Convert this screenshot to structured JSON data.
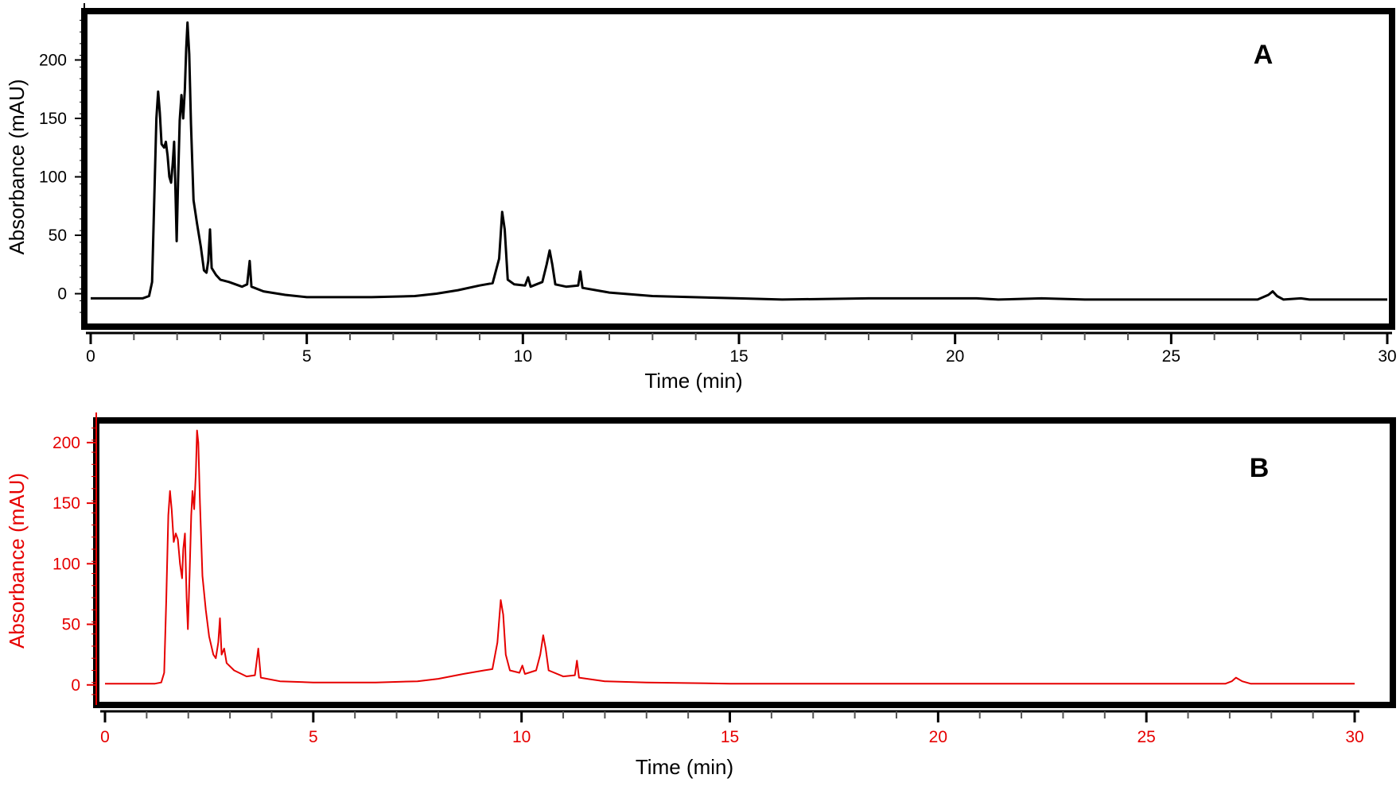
{
  "chart_data": [
    {
      "type": "line",
      "panel_label": "A",
      "xlabel": "Time (min)",
      "ylabel": "Absorbance (mAU)",
      "xlim": [
        0,
        30
      ],
      "ylim": [
        -18,
        235
      ],
      "x_ticks": [
        "0",
        "5",
        "10",
        "15",
        "20",
        "25",
        "30"
      ],
      "y_ticks": [
        "0",
        "50",
        "100",
        "150",
        "200"
      ],
      "color": "#000000",
      "grid": false,
      "series": [
        {
          "points": [
            [
              0,
              -4
            ],
            [
              1.2,
              -4
            ],
            [
              1.35,
              -2
            ],
            [
              1.42,
              10
            ],
            [
              1.47,
              80
            ],
            [
              1.52,
              150
            ],
            [
              1.56,
              173
            ],
            [
              1.6,
              155
            ],
            [
              1.64,
              128
            ],
            [
              1.7,
              125
            ],
            [
              1.74,
              130
            ],
            [
              1.78,
              118
            ],
            [
              1.82,
              100
            ],
            [
              1.86,
              95
            ],
            [
              1.9,
              112
            ],
            [
              1.93,
              130
            ],
            [
              1.96,
              90
            ],
            [
              1.99,
              45
            ],
            [
              2.02,
              95
            ],
            [
              2.06,
              148
            ],
            [
              2.1,
              170
            ],
            [
              2.14,
              150
            ],
            [
              2.18,
              175
            ],
            [
              2.21,
              210
            ],
            [
              2.24,
              232
            ],
            [
              2.28,
              205
            ],
            [
              2.32,
              145
            ],
            [
              2.38,
              80
            ],
            [
              2.46,
              60
            ],
            [
              2.55,
              40
            ],
            [
              2.62,
              20
            ],
            [
              2.68,
              18
            ],
            [
              2.72,
              28
            ],
            [
              2.76,
              55
            ],
            [
              2.8,
              22
            ],
            [
              2.9,
              16
            ],
            [
              3.0,
              12
            ],
            [
              3.2,
              10
            ],
            [
              3.5,
              6
            ],
            [
              3.62,
              8
            ],
            [
              3.68,
              28
            ],
            [
              3.72,
              6
            ],
            [
              4.0,
              2
            ],
            [
              4.5,
              -1
            ],
            [
              5.0,
              -3
            ],
            [
              6.5,
              -3
            ],
            [
              7.5,
              -2
            ],
            [
              8.0,
              0
            ],
            [
              8.5,
              3
            ],
            [
              9.0,
              7
            ],
            [
              9.3,
              9
            ],
            [
              9.45,
              30
            ],
            [
              9.52,
              70
            ],
            [
              9.58,
              55
            ],
            [
              9.65,
              12
            ],
            [
              9.8,
              8
            ],
            [
              10.05,
              7
            ],
            [
              10.12,
              14
            ],
            [
              10.18,
              6
            ],
            [
              10.45,
              10
            ],
            [
              10.55,
              25
            ],
            [
              10.62,
              37
            ],
            [
              10.68,
              25
            ],
            [
              10.75,
              8
            ],
            [
              11.0,
              6
            ],
            [
              11.28,
              7
            ],
            [
              11.33,
              19
            ],
            [
              11.38,
              5
            ],
            [
              12.0,
              1
            ],
            [
              13.0,
              -2
            ],
            [
              15.0,
              -4
            ],
            [
              16.0,
              -5
            ],
            [
              18.0,
              -4
            ],
            [
              20.5,
              -4
            ],
            [
              21.0,
              -5
            ],
            [
              22.0,
              -4
            ],
            [
              23.0,
              -5
            ],
            [
              27.0,
              -5
            ],
            [
              27.25,
              -1
            ],
            [
              27.35,
              2
            ],
            [
              27.45,
              -2
            ],
            [
              27.6,
              -5
            ],
            [
              28.0,
              -4
            ],
            [
              28.2,
              -5
            ],
            [
              30,
              -5
            ]
          ]
        }
      ]
    },
    {
      "type": "line",
      "panel_label": "B",
      "xlabel": "Time (min)",
      "ylabel": "Absorbance (mAU)",
      "xlim": [
        0,
        30
      ],
      "ylim": [
        -10,
        215
      ],
      "x_ticks": [
        "0",
        "5",
        "10",
        "15",
        "20",
        "25",
        "30"
      ],
      "y_ticks": [
        "0",
        "50",
        "100",
        "150",
        "200"
      ],
      "color": "#e60000",
      "grid": false,
      "series": [
        {
          "points": [
            [
              0,
              1
            ],
            [
              1.2,
              1
            ],
            [
              1.35,
              2
            ],
            [
              1.42,
              10
            ],
            [
              1.47,
              70
            ],
            [
              1.52,
              140
            ],
            [
              1.56,
              160
            ],
            [
              1.6,
              145
            ],
            [
              1.65,
              118
            ],
            [
              1.7,
              125
            ],
            [
              1.75,
              120
            ],
            [
              1.8,
              100
            ],
            [
              1.85,
              88
            ],
            [
              1.88,
              112
            ],
            [
              1.92,
              125
            ],
            [
              1.96,
              72
            ],
            [
              1.99,
              46
            ],
            [
              2.03,
              90
            ],
            [
              2.07,
              140
            ],
            [
              2.1,
              160
            ],
            [
              2.14,
              145
            ],
            [
              2.18,
              175
            ],
            [
              2.21,
              210
            ],
            [
              2.24,
              200
            ],
            [
              2.28,
              150
            ],
            [
              2.34,
              90
            ],
            [
              2.42,
              62
            ],
            [
              2.5,
              40
            ],
            [
              2.6,
              25
            ],
            [
              2.66,
              22
            ],
            [
              2.72,
              35
            ],
            [
              2.76,
              55
            ],
            [
              2.8,
              25
            ],
            [
              2.86,
              30
            ],
            [
              2.92,
              18
            ],
            [
              3.1,
              12
            ],
            [
              3.4,
              7
            ],
            [
              3.6,
              8
            ],
            [
              3.68,
              30
            ],
            [
              3.74,
              6
            ],
            [
              4.2,
              3
            ],
            [
              5.0,
              2
            ],
            [
              6.5,
              2
            ],
            [
              7.5,
              3
            ],
            [
              8.0,
              5
            ],
            [
              8.6,
              9
            ],
            [
              9.1,
              12
            ],
            [
              9.3,
              13
            ],
            [
              9.42,
              35
            ],
            [
              9.5,
              70
            ],
            [
              9.56,
              58
            ],
            [
              9.62,
              25
            ],
            [
              9.72,
              12
            ],
            [
              9.95,
              10
            ],
            [
              10.02,
              16
            ],
            [
              10.08,
              9
            ],
            [
              10.35,
              12
            ],
            [
              10.45,
              25
            ],
            [
              10.52,
              41
            ],
            [
              10.58,
              30
            ],
            [
              10.65,
              12
            ],
            [
              11.0,
              7
            ],
            [
              11.28,
              8
            ],
            [
              11.33,
              20
            ],
            [
              11.38,
              6
            ],
            [
              12.0,
              3
            ],
            [
              13.0,
              2
            ],
            [
              15.0,
              1
            ],
            [
              20.0,
              1
            ],
            [
              26.9,
              1
            ],
            [
              27.05,
              3
            ],
            [
              27.15,
              6
            ],
            [
              27.3,
              3
            ],
            [
              27.5,
              1
            ],
            [
              30,
              1
            ]
          ]
        }
      ]
    }
  ]
}
